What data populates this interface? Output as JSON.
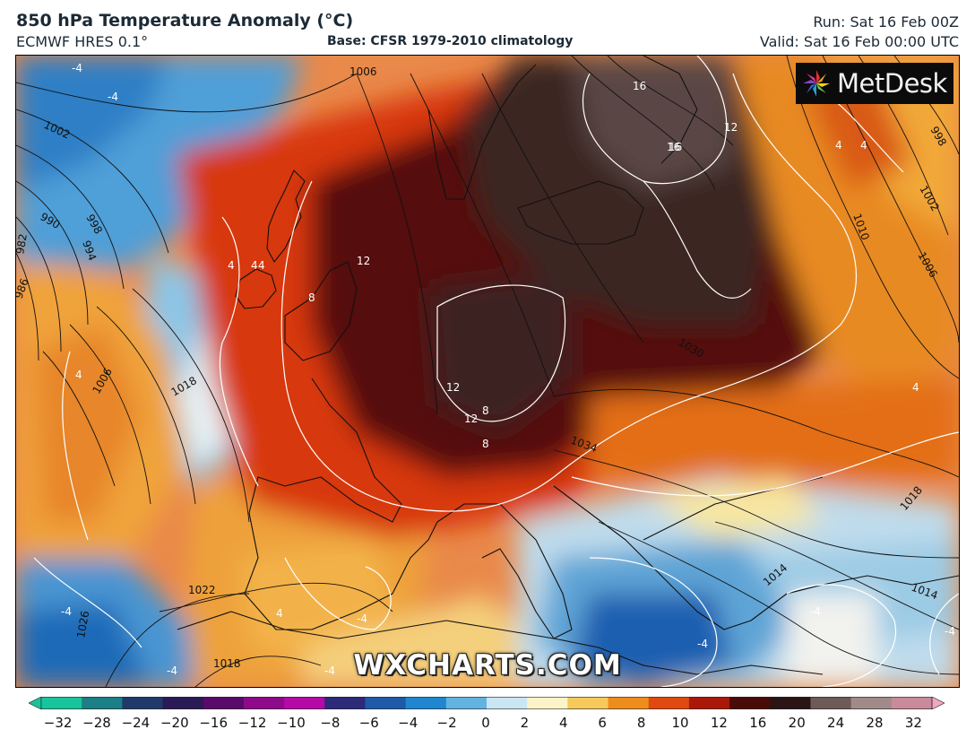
{
  "header": {
    "title": "850 hPa Temperature Anomaly (°C)",
    "model": "ECMWF HRES 0.1°",
    "base": "Base: CFSR 1979-2010 climatology",
    "run": "Run: Sat 16 Feb 00Z",
    "valid": "Valid: Sat 16 Feb 00:00 UTC"
  },
  "logo": {
    "text": "MetDesk",
    "icon": "metdesk-pinwheel-icon"
  },
  "watermark": "WXCHARTS.COM",
  "isobar_labels": [
    "1006",
    "1002",
    "990",
    "998",
    "994",
    "982",
    "986",
    "1006",
    "1018",
    "1022",
    "1026",
    "1018",
    "1030",
    "1034",
    "1018",
    "1014",
    "1014",
    "1010",
    "1002",
    "1006",
    "998"
  ],
  "anomaly_labels": [
    "-4",
    "-4",
    "4",
    "4",
    "8",
    "12",
    "12",
    "12",
    "8",
    "8",
    "16",
    "16",
    "12",
    "16",
    "4",
    "4",
    "4",
    "-4",
    "-4",
    "-4",
    "-4",
    "-4",
    "-4",
    "4",
    "4",
    "-4",
    "4"
  ],
  "colorbar": {
    "ticks": [
      "−32",
      "−28",
      "−24",
      "−20",
      "−16",
      "−12",
      "−10",
      "−8",
      "−6",
      "−4",
      "−2",
      "0",
      "2",
      "4",
      "6",
      "8",
      "10",
      "12",
      "16",
      "20",
      "24",
      "28",
      "32"
    ],
    "colors": [
      "#18c49c",
      "#1a7f86",
      "#1f3a6a",
      "#2a1a55",
      "#5a0a6a",
      "#8e0a8a",
      "#b30aa8",
      "#2d2a7a",
      "#1f5aa8",
      "#1f86cf",
      "#62b3e0",
      "#c9e6f2",
      "#fbf4c8",
      "#f7c95a",
      "#ef8d1c",
      "#e04a10",
      "#a91808",
      "#4a0a08",
      "#2a1514",
      "#6e5a59",
      "#a08a8a",
      "#c98a9a",
      "#f0a8c0"
    ]
  },
  "legend_colors": {
    "cold_deep": "#0a4aa8",
    "cold": "#5aa6d8",
    "neutral": "#f2f2ee",
    "warm": "#f2a22a",
    "hot": "#d8340c",
    "very_hot": "#5e0b06",
    "extreme": "#3a2523"
  }
}
